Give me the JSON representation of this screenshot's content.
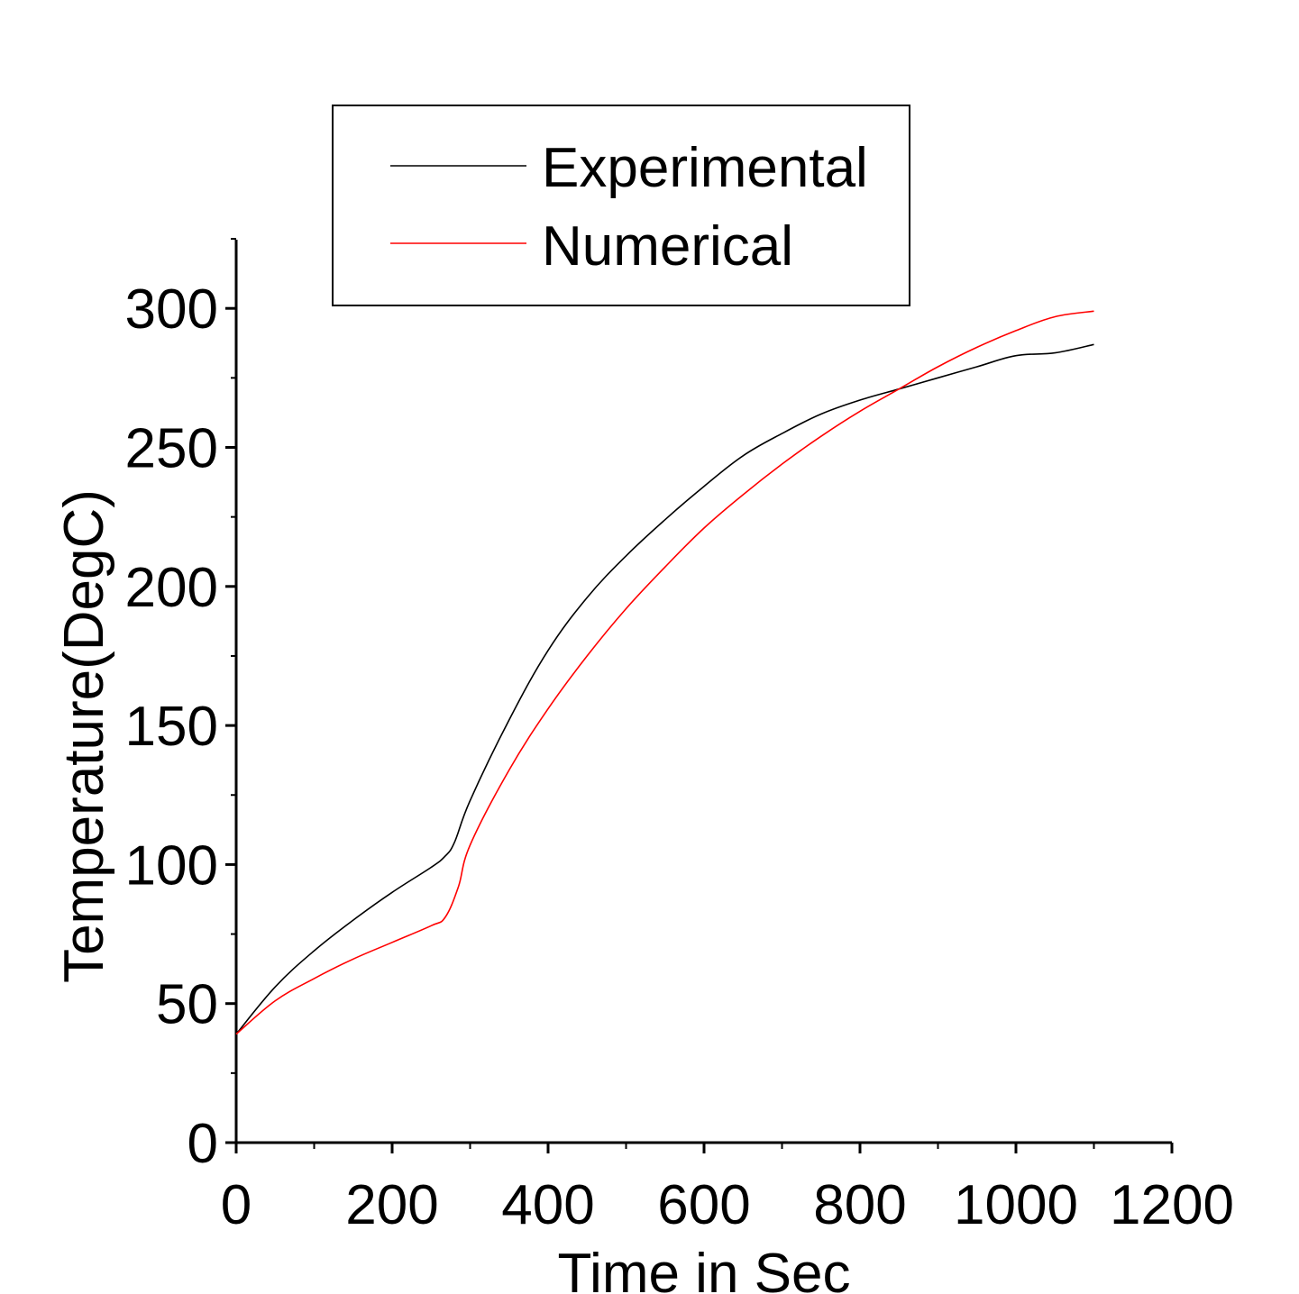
{
  "chart_data": {
    "type": "line",
    "title": "",
    "xlabel": "Time in Sec",
    "ylabel": "Temperature(DegC)",
    "xlim": [
      0,
      1200
    ],
    "ylim": [
      0,
      325
    ],
    "x_ticks": [
      0,
      200,
      400,
      600,
      800,
      1000,
      1200
    ],
    "y_ticks": [
      0,
      50,
      100,
      150,
      200,
      250,
      300
    ],
    "grid": false,
    "legend_position": "top",
    "series": [
      {
        "name": "Experimental",
        "color": "#000000",
        "x": [
          0,
          50,
          100,
          150,
          200,
          250,
          268,
          280,
          300,
          350,
          400,
          450,
          500,
          550,
          600,
          650,
          700,
          750,
          800,
          850,
          900,
          950,
          1000,
          1050,
          1100
        ],
        "y": [
          39,
          56,
          69,
          80,
          90,
          99,
          103,
          108,
          123,
          152,
          177,
          196,
          211,
          224,
          236,
          247,
          255,
          262,
          267,
          271,
          275,
          279,
          283,
          284,
          287
        ]
      },
      {
        "name": "Numerical",
        "color": "#ff0000",
        "x": [
          0,
          50,
          100,
          150,
          200,
          250,
          268,
          285,
          300,
          350,
          400,
          450,
          500,
          550,
          600,
          650,
          700,
          750,
          800,
          850,
          900,
          950,
          1000,
          1050,
          1100
        ],
        "y": [
          39,
          51,
          59,
          66,
          72,
          78,
          81,
          92,
          107,
          134,
          156,
          175,
          192,
          207,
          221,
          233,
          244,
          254,
          263,
          271,
          279,
          286,
          292,
          297,
          299
        ]
      }
    ]
  }
}
